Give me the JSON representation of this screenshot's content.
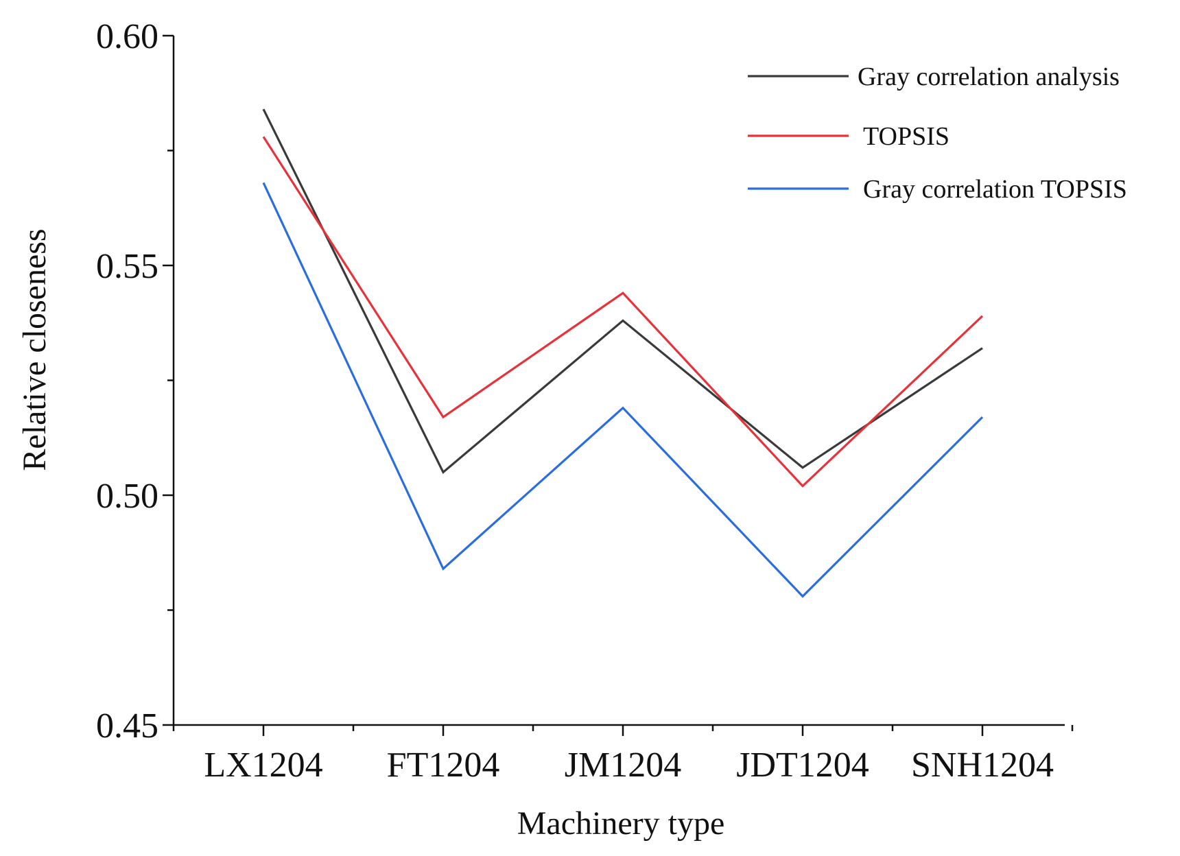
{
  "chart_data": {
    "type": "line",
    "title": "",
    "xlabel": "Machinery type",
    "ylabel": "Relative closeness",
    "categories": [
      "LX1204",
      "FT1204",
      "JM1204",
      "JDT1204",
      "SNH1204"
    ],
    "ylim": [
      0.45,
      0.6
    ],
    "yticks": [
      0.45,
      0.5,
      0.55,
      0.6
    ],
    "ytick_labels": [
      "0.45",
      "0.50",
      "0.55",
      "0.60"
    ],
    "grid": false,
    "legend_position": "top-right",
    "series": [
      {
        "name": "Gray correlation analysis",
        "color": "#3a3a3a",
        "values": [
          0.584,
          0.505,
          0.538,
          0.506,
          0.532
        ]
      },
      {
        "name": "TOPSIS",
        "color": "#e8323a",
        "values": [
          0.578,
          0.517,
          0.544,
          0.502,
          0.539
        ]
      },
      {
        "name": "Gray correlation TOPSIS",
        "color": "#2a6de0",
        "values": [
          0.568,
          0.484,
          0.519,
          0.478,
          0.517
        ]
      }
    ]
  }
}
